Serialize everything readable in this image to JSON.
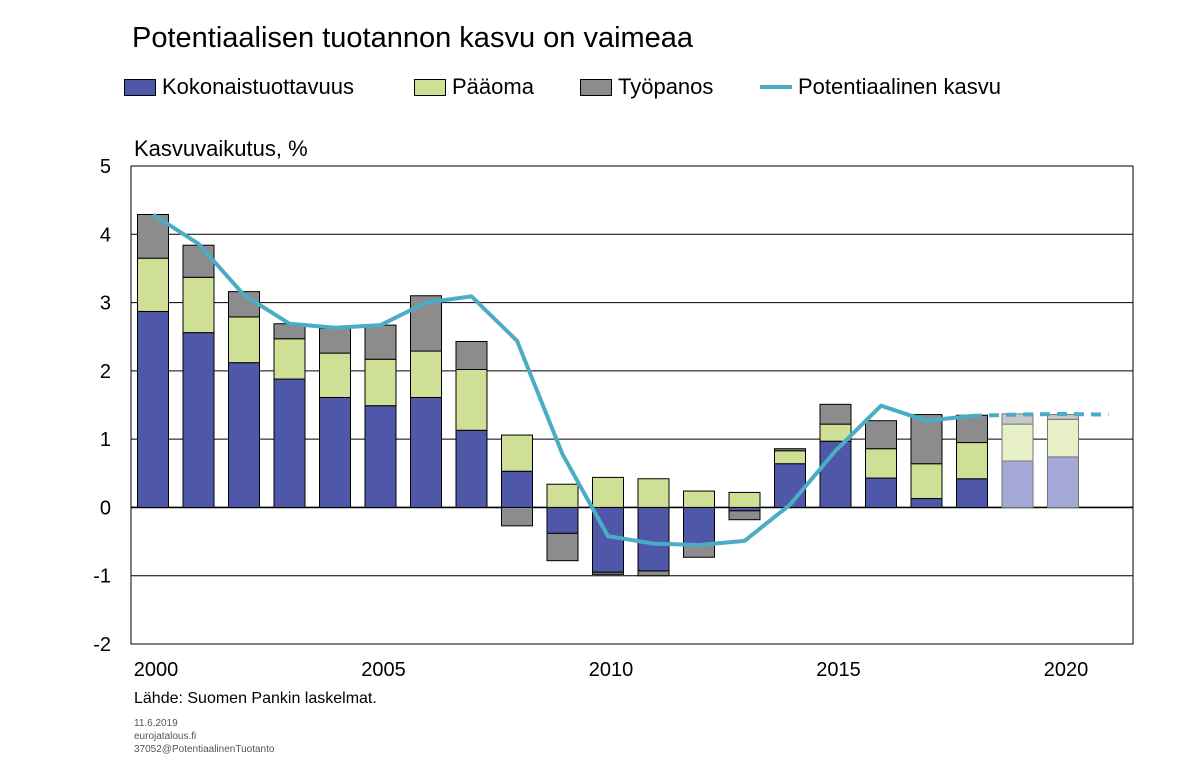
{
  "title": "Potentiaalisen tuotannon kasvu on vaimeaa",
  "ylabel": "Kasvuvaikutus, %",
  "source": "Lähde: Suomen Pankin laskelmat.",
  "meta": {
    "date": "11.6.2019",
    "site": "eurojatalous.fi",
    "code": "37052@PotentiaalinenTuotanto"
  },
  "colors": {
    "tfp": "#4E57A8",
    "capital": "#CFDF95",
    "labour": "#8C8C8C",
    "line": "#4BACC6",
    "tfp_forecast": "#A5A9D8",
    "capital_forecast": "#E6EFC5",
    "labour_forecast": "#C8C8C8"
  },
  "chart_data": {
    "type": "bar",
    "stacked": true,
    "categories": [
      "2000",
      "2001",
      "2002",
      "2003",
      "2004",
      "2005",
      "2006",
      "2007",
      "2008",
      "2009",
      "2010",
      "2011",
      "2012",
      "2013",
      "2014",
      "2015",
      "2016",
      "2017",
      "2018",
      "2019",
      "2020",
      "2021"
    ],
    "x_tick_labels": [
      "2000",
      "2005",
      "2010",
      "2015",
      "2020"
    ],
    "forecast_from": "2019",
    "ylim": [
      -2,
      5
    ],
    "yticks": [
      -2,
      -1,
      0,
      1,
      2,
      3,
      4,
      5
    ],
    "grid": true,
    "legend_position": "top",
    "series": [
      {
        "name": "Kokonaistuottavuus",
        "key": "tfp",
        "kind": "bar",
        "values": [
          2.87,
          2.56,
          2.12,
          1.88,
          1.61,
          1.49,
          1.61,
          1.13,
          0.53,
          -0.38,
          -0.95,
          -0.93,
          -0.55,
          -0.05,
          0.64,
          0.97,
          0.43,
          0.13,
          0.42,
          0.68,
          0.74,
          null
        ]
      },
      {
        "name": "Pääoma",
        "key": "capital",
        "kind": "bar",
        "values": [
          0.78,
          0.81,
          0.67,
          0.59,
          0.65,
          0.68,
          0.68,
          0.89,
          0.53,
          0.34,
          0.44,
          0.42,
          0.24,
          0.22,
          0.19,
          0.25,
          0.43,
          0.51,
          0.53,
          0.54,
          0.55,
          null
        ]
      },
      {
        "name": "Työpanos",
        "key": "labour",
        "kind": "bar",
        "values": [
          0.64,
          0.47,
          0.37,
          0.22,
          0.36,
          0.5,
          0.81,
          0.41,
          -0.27,
          -0.4,
          -0.03,
          -0.07,
          -0.18,
          -0.13,
          0.03,
          0.29,
          0.41,
          0.72,
          0.4,
          0.15,
          0.07,
          null
        ]
      },
      {
        "name": "Potentiaalinen kasvu",
        "key": "line",
        "kind": "line",
        "values": [
          4.29,
          3.86,
          3.11,
          2.69,
          2.63,
          2.67,
          3.0,
          3.09,
          2.44,
          0.78,
          -0.42,
          -0.53,
          -0.55,
          -0.49,
          0.04,
          0.83,
          1.49,
          1.27,
          1.34,
          1.36,
          1.37,
          1.36
        ]
      }
    ]
  }
}
